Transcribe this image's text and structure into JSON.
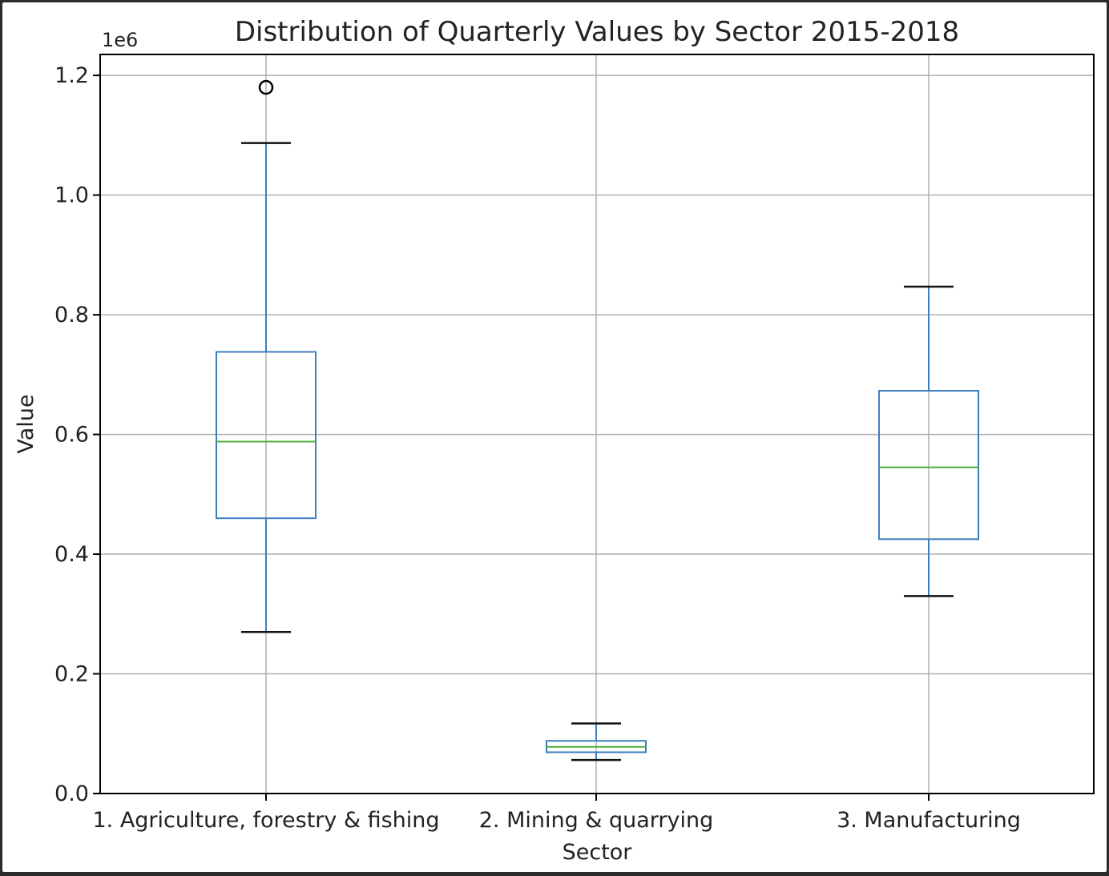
{
  "chart_data": {
    "type": "box",
    "title": "Distribution of Quarterly Values by Sector 2015-2018",
    "xlabel": "Sector",
    "ylabel": "Value",
    "y_offset_label": "1e6",
    "ylim": [
      0,
      1.235
    ],
    "grid": true,
    "y_ticks": [
      {
        "value": 0.0,
        "label": "0.0"
      },
      {
        "value": 0.2,
        "label": "0.2"
      },
      {
        "value": 0.4,
        "label": "0.4"
      },
      {
        "value": 0.6,
        "label": "0.6"
      },
      {
        "value": 0.8,
        "label": "0.8"
      },
      {
        "value": 1.0,
        "label": "1.0"
      },
      {
        "value": 1.2,
        "label": "1.2"
      }
    ],
    "categories": [
      "1. Agriculture, forestry & fishing",
      "2. Mining & quarrying",
      "3. Manufacturing"
    ],
    "boxes": [
      {
        "category": "1. Agriculture, forestry & fishing",
        "whisker_low": 0.27,
        "q1": 0.46,
        "median": 0.588,
        "q3": 0.738,
        "whisker_high": 1.087,
        "outliers": [
          1.18
        ]
      },
      {
        "category": "2. Mining & quarrying",
        "whisker_low": 0.056,
        "q1": 0.069,
        "median": 0.078,
        "q3": 0.088,
        "whisker_high": 0.117,
        "outliers": []
      },
      {
        "category": "3. Manufacturing",
        "whisker_low": 0.33,
        "q1": 0.425,
        "median": 0.545,
        "q3": 0.673,
        "whisker_high": 0.847,
        "outliers": []
      }
    ],
    "colors": {
      "box": "#3d7ebf",
      "median": "#4caf38",
      "whisker_cap": "#111111",
      "grid": "#b0b0b0",
      "axes": "#000000"
    }
  }
}
